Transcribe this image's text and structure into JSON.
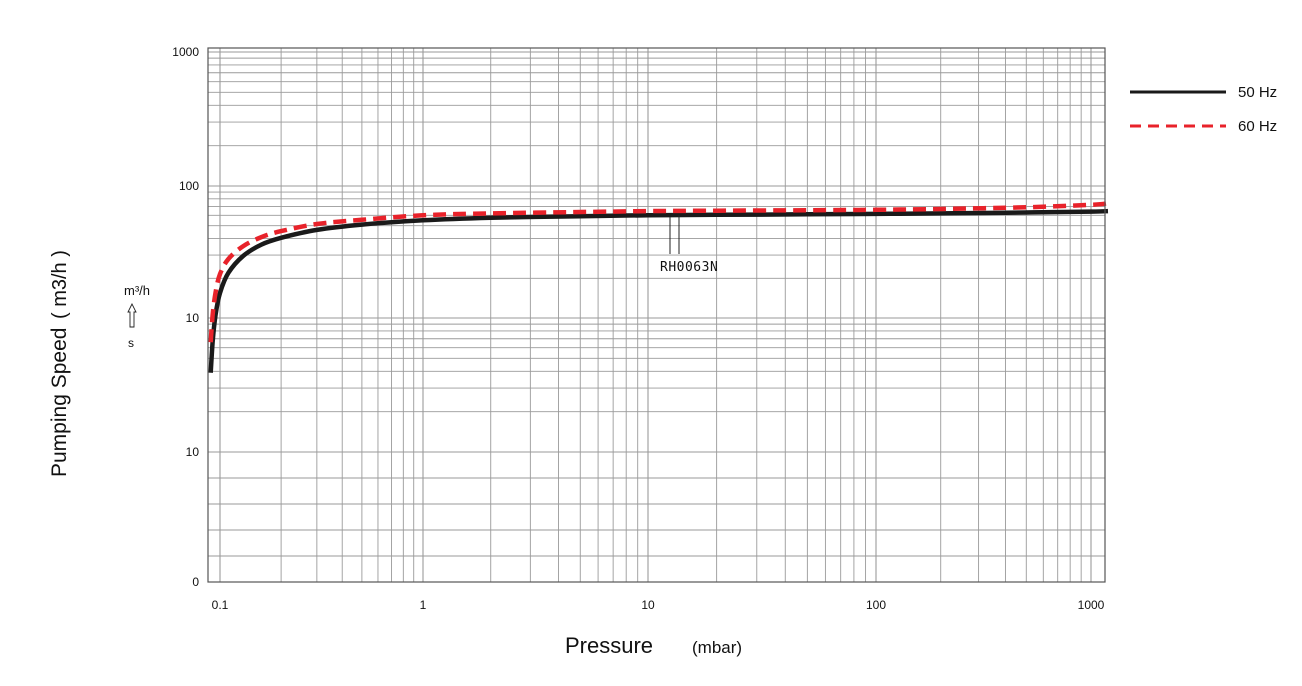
{
  "chart_data": {
    "type": "line",
    "x_scale": "log",
    "y_scale": "log",
    "xlim": [
      0.09,
      1200
    ],
    "ylim": [
      0,
      1000
    ],
    "grid": true,
    "legend_position": "top-right",
    "x_ticks": [
      "0.1",
      "1",
      "10",
      "100",
      "1000"
    ],
    "y_ticks": [
      "0",
      "10",
      "10",
      "100",
      "1000"
    ],
    "xlabel": "Pressure",
    "xlabel_unit": "(mbar)",
    "ylabel": "Pumping Speed",
    "ylabel_unit": "( m3/h )",
    "side_label": {
      "unit": "m³/h",
      "arrow": "up-arrow",
      "symbol": "s"
    },
    "annotation": "RH0063N",
    "series": [
      {
        "name": "50 Hz",
        "color": "#1a1a1a",
        "style": "solid",
        "x": [
          0.09,
          0.092,
          0.095,
          0.1,
          0.11,
          0.13,
          0.16,
          0.2,
          0.3,
          0.5,
          1,
          2,
          5,
          10,
          20,
          50,
          100,
          200,
          500,
          1000,
          1200
        ],
        "y": [
          3.9,
          6.6,
          10.5,
          15.5,
          22,
          29.5,
          36,
          40.5,
          46.5,
          51,
          55,
          57.5,
          59,
          60,
          60.5,
          61,
          61.5,
          62,
          63,
          64,
          64.5
        ]
      },
      {
        "name": "60 Hz",
        "color": "#e8222a",
        "style": "dashed",
        "x": [
          0.09,
          0.092,
          0.095,
          0.1,
          0.11,
          0.13,
          0.16,
          0.2,
          0.3,
          0.5,
          1,
          2,
          5,
          10,
          20,
          50,
          100,
          200,
          500,
          1000,
          1200
        ],
        "y": [
          6.6,
          10.5,
          15.5,
          21.5,
          28,
          35,
          41,
          45.5,
          51.5,
          55.5,
          60,
          62,
          63.5,
          64.5,
          65,
          65.5,
          66,
          67,
          69,
          72,
          74
        ]
      }
    ]
  }
}
